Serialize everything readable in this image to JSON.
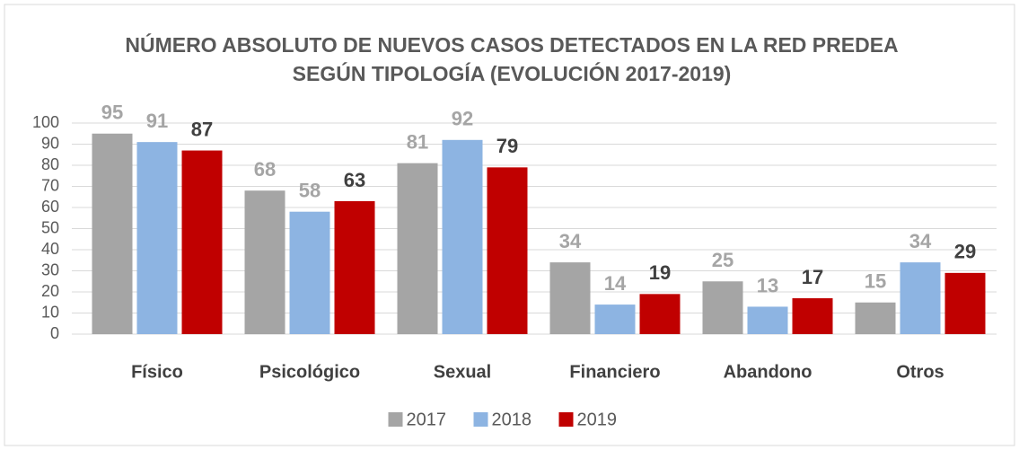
{
  "chart_data": {
    "type": "bar",
    "title": "NÚMERO ABSOLUTO DE NUEVOS CASOS DETECTADOS EN LA RED PREDEA SEGÚN TIPOLOGÍA (EVOLUCIÓN 2017-2019)",
    "categories": [
      "Físico",
      "Psicológico",
      "Sexual",
      "Financiero",
      "Abandono",
      "Otros"
    ],
    "series": [
      {
        "name": "2017",
        "color": "#a5a5a5",
        "label_color": "#a5a5a5",
        "values": [
          95,
          68,
          81,
          34,
          25,
          15
        ]
      },
      {
        "name": "2018",
        "color": "#8db4e2",
        "label_color": "#a5a5a5",
        "values": [
          91,
          58,
          92,
          14,
          13,
          34
        ]
      },
      {
        "name": "2019",
        "color": "#c00000",
        "label_color": "#404040",
        "values": [
          87,
          63,
          79,
          19,
          17,
          29
        ]
      }
    ],
    "ylim": [
      0,
      100
    ],
    "yticks": [
      0,
      10,
      20,
      30,
      40,
      50,
      60,
      70,
      80,
      90,
      100
    ],
    "grid": true,
    "legend": "bottom"
  }
}
